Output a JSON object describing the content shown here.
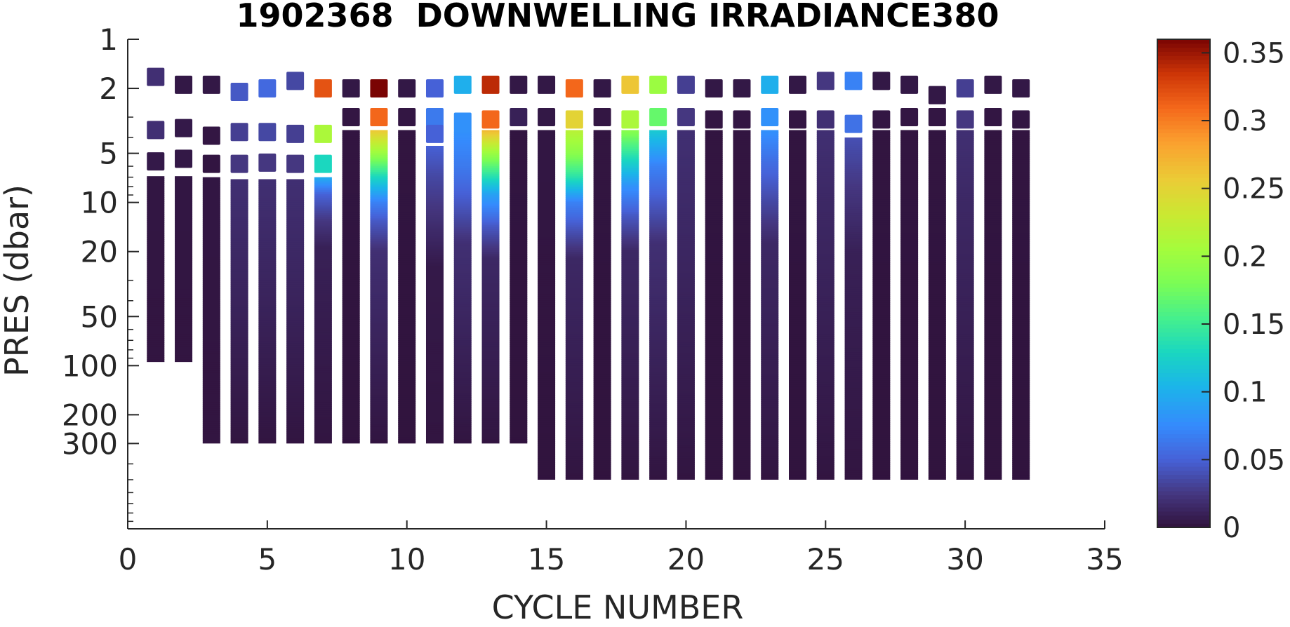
{
  "chart_data": {
    "type": "heatmap",
    "title": "1902368  DOWNWELLING IRRADIANCE380",
    "xlabel": "CYCLE NUMBER",
    "ylabel": "PRES (dbar)",
    "xlim": [
      0,
      35
    ],
    "ylim": [
      1,
      1000
    ],
    "yscale": "log",
    "y_reversed": true,
    "x_ticks": [
      0,
      5,
      10,
      15,
      20,
      25,
      30,
      35
    ],
    "y_ticks": [
      1,
      2,
      5,
      10,
      20,
      50,
      100,
      200,
      300
    ],
    "colorbar": {
      "colormap": "turbo",
      "limits": [
        0,
        0.36
      ],
      "ticks": [
        0,
        0.05,
        0.1,
        0.15,
        0.2,
        0.25,
        0.3,
        0.35
      ]
    },
    "cycles": [
      {
        "cycle": 1,
        "samples": [
          [
            1.7,
            0.02
          ],
          [
            3.6,
            0.02
          ],
          [
            5.6,
            0.005
          ]
        ],
        "profile": [
          [
            6.9,
            0.003
          ],
          [
            95,
            0.002
          ]
        ]
      },
      {
        "cycle": 2,
        "samples": [
          [
            1.9,
            0.004
          ],
          [
            3.5,
            0.005
          ],
          [
            5.4,
            0.004
          ]
        ],
        "profile": [
          [
            6.9,
            0.003
          ],
          [
            95,
            0.002
          ]
        ]
      },
      {
        "cycle": 3,
        "samples": [
          [
            1.9,
            0.004
          ],
          [
            3.9,
            0.003
          ],
          [
            5.8,
            0.002
          ]
        ],
        "profile": [
          [
            7.0,
            0.003
          ],
          [
            300,
            0.002
          ]
        ]
      },
      {
        "cycle": 4,
        "samples": [
          [
            2.1,
            0.045
          ],
          [
            3.7,
            0.03
          ],
          [
            5.8,
            0.025
          ]
        ],
        "profile": [
          [
            7.2,
            0.02
          ],
          [
            300,
            0.002
          ]
        ]
      },
      {
        "cycle": 5,
        "samples": [
          [
            2.0,
            0.055
          ],
          [
            3.7,
            0.035
          ],
          [
            5.7,
            0.025
          ]
        ],
        "profile": [
          [
            7.2,
            0.02
          ],
          [
            300,
            0.002
          ]
        ]
      },
      {
        "cycle": 6,
        "samples": [
          [
            1.8,
            0.035
          ],
          [
            3.8,
            0.03
          ],
          [
            5.8,
            0.025
          ]
        ],
        "profile": [
          [
            7.2,
            0.02
          ],
          [
            300,
            0.002
          ]
        ]
      },
      {
        "cycle": 7,
        "samples": [
          [
            2.0,
            0.32
          ],
          [
            3.8,
            0.21
          ],
          [
            5.8,
            0.13
          ]
        ],
        "profile": [
          [
            7.0,
            0.1
          ],
          [
            9.0,
            0.05
          ],
          [
            13,
            0.025
          ],
          [
            19,
            0.01
          ],
          [
            300,
            0.002
          ]
        ]
      },
      {
        "cycle": 8,
        "samples": [
          [
            2.0,
            0.004
          ],
          [
            3.0,
            0.003
          ]
        ],
        "profile": [
          [
            3.6,
            0.002
          ],
          [
            300,
            0.001
          ]
        ]
      },
      {
        "cycle": 9,
        "samples": [
          [
            2.0,
            0.36
          ],
          [
            3.0,
            0.31
          ]
        ],
        "profile": [
          [
            3.6,
            0.26
          ],
          [
            5.0,
            0.2
          ],
          [
            7.0,
            0.13
          ],
          [
            10,
            0.07
          ],
          [
            13,
            0.045
          ],
          [
            20,
            0.02
          ],
          [
            300,
            0.002
          ]
        ]
      },
      {
        "cycle": 10,
        "samples": [
          [
            2.0,
            0.004
          ],
          [
            3.0,
            0.003
          ]
        ],
        "profile": [
          [
            3.6,
            0.002
          ],
          [
            300,
            0.001
          ]
        ]
      },
      {
        "cycle": 11,
        "samples": [
          [
            2.0,
            0.05
          ],
          [
            3.0,
            0.065
          ],
          [
            3.8,
            0.05
          ]
        ],
        "profile": [
          [
            4.5,
            0.05
          ],
          [
            7.0,
            0.035
          ],
          [
            13,
            0.02
          ],
          [
            25,
            0.005
          ],
          [
            300,
            0.002
          ]
        ]
      },
      {
        "cycle": 12,
        "samples": [
          [
            1.9,
            0.1
          ],
          [
            3.2,
            0.08
          ]
        ],
        "profile": [
          [
            3.6,
            0.08
          ],
          [
            6.0,
            0.065
          ],
          [
            10,
            0.045
          ],
          [
            18,
            0.02
          ],
          [
            300,
            0.002
          ]
        ]
      },
      {
        "cycle": 13,
        "samples": [
          [
            1.9,
            0.34
          ],
          [
            3.1,
            0.31
          ]
        ],
        "profile": [
          [
            3.6,
            0.27
          ],
          [
            5.0,
            0.2
          ],
          [
            6.5,
            0.15
          ],
          [
            9.0,
            0.09
          ],
          [
            14,
            0.045
          ],
          [
            22,
            0.015
          ],
          [
            300,
            0.002
          ]
        ]
      },
      {
        "cycle": 14,
        "samples": [
          [
            1.9,
            0.004
          ],
          [
            3.0,
            0.01
          ]
        ],
        "profile": [
          [
            3.6,
            0.002
          ],
          [
            300,
            0.001
          ]
        ]
      },
      {
        "cycle": 15,
        "samples": [
          [
            1.9,
            0.004
          ],
          [
            3.0,
            0.004
          ]
        ],
        "profile": [
          [
            3.6,
            0.003
          ],
          [
            500,
            0.001
          ]
        ]
      },
      {
        "cycle": 16,
        "samples": [
          [
            2.0,
            0.31
          ],
          [
            3.1,
            0.25
          ]
        ],
        "profile": [
          [
            3.6,
            0.22
          ],
          [
            5.0,
            0.19
          ],
          [
            7.0,
            0.14
          ],
          [
            10,
            0.07
          ],
          [
            15,
            0.04
          ],
          [
            22,
            0.015
          ],
          [
            500,
            0.002
          ]
        ]
      },
      {
        "cycle": 17,
        "samples": [
          [
            2.0,
            0.004
          ],
          [
            3.0,
            0.003
          ]
        ],
        "profile": [
          [
            3.6,
            0.002
          ],
          [
            500,
            0.001
          ]
        ]
      },
      {
        "cycle": 18,
        "samples": [
          [
            1.9,
            0.26
          ],
          [
            3.1,
            0.21
          ]
        ],
        "profile": [
          [
            3.6,
            0.19
          ],
          [
            5.5,
            0.13
          ],
          [
            8.0,
            0.08
          ],
          [
            12,
            0.045
          ],
          [
            20,
            0.015
          ],
          [
            500,
            0.002
          ]
        ]
      },
      {
        "cycle": 19,
        "samples": [
          [
            1.9,
            0.2
          ],
          [
            3.0,
            0.17
          ]
        ],
        "profile": [
          [
            3.6,
            0.12
          ],
          [
            6.0,
            0.07
          ],
          [
            10,
            0.045
          ],
          [
            18,
            0.02
          ],
          [
            500,
            0.002
          ]
        ]
      },
      {
        "cycle": 20,
        "samples": [
          [
            1.9,
            0.03
          ],
          [
            3.0,
            0.025
          ]
        ],
        "profile": [
          [
            3.6,
            0.02
          ],
          [
            500,
            0.002
          ]
        ]
      },
      {
        "cycle": 21,
        "samples": [
          [
            2.0,
            0.004
          ],
          [
            3.1,
            0.003
          ]
        ],
        "profile": [
          [
            3.6,
            0.002
          ],
          [
            500,
            0.001
          ]
        ]
      },
      {
        "cycle": 22,
        "samples": [
          [
            2.0,
            0.004
          ],
          [
            3.1,
            0.003
          ]
        ],
        "profile": [
          [
            3.6,
            0.002
          ],
          [
            500,
            0.001
          ]
        ]
      },
      {
        "cycle": 23,
        "samples": [
          [
            1.9,
            0.1
          ],
          [
            3.0,
            0.08
          ]
        ],
        "profile": [
          [
            3.6,
            0.08
          ],
          [
            6.0,
            0.055
          ],
          [
            10,
            0.035
          ],
          [
            18,
            0.015
          ],
          [
            500,
            0.002
          ]
        ]
      },
      {
        "cycle": 24,
        "samples": [
          [
            1.9,
            0.004
          ],
          [
            3.1,
            0.003
          ]
        ],
        "profile": [
          [
            3.6,
            0.002
          ],
          [
            500,
            0.001
          ]
        ]
      },
      {
        "cycle": 25,
        "samples": [
          [
            1.8,
            0.025
          ],
          [
            3.1,
            0.02
          ]
        ],
        "profile": [
          [
            3.6,
            0.02
          ],
          [
            10,
            0.015
          ],
          [
            500,
            0.002
          ]
        ]
      },
      {
        "cycle": 26,
        "samples": [
          [
            1.8,
            0.07
          ],
          [
            3.3,
            0.06
          ]
        ],
        "profile": [
          [
            4.0,
            0.04
          ],
          [
            8.0,
            0.025
          ],
          [
            20,
            0.01
          ],
          [
            500,
            0.002
          ]
        ]
      },
      {
        "cycle": 27,
        "samples": [
          [
            1.8,
            0.004
          ],
          [
            3.1,
            0.003
          ]
        ],
        "profile": [
          [
            3.6,
            0.002
          ],
          [
            500,
            0.001
          ]
        ]
      },
      {
        "cycle": 28,
        "samples": [
          [
            1.9,
            0.004
          ],
          [
            3.0,
            0.003
          ]
        ],
        "profile": [
          [
            3.6,
            0.002
          ],
          [
            500,
            0.001
          ]
        ]
      },
      {
        "cycle": 29,
        "samples": [
          [
            2.2,
            0.004
          ],
          [
            3.0,
            0.003
          ]
        ],
        "profile": [
          [
            3.6,
            0.002
          ],
          [
            500,
            0.001
          ]
        ]
      },
      {
        "cycle": 30,
        "samples": [
          [
            2.0,
            0.03
          ],
          [
            3.1,
            0.025
          ]
        ],
        "profile": [
          [
            3.6,
            0.02
          ],
          [
            10,
            0.015
          ],
          [
            500,
            0.002
          ]
        ]
      },
      {
        "cycle": 31,
        "samples": [
          [
            1.9,
            0.004
          ],
          [
            3.0,
            0.003
          ]
        ],
        "profile": [
          [
            3.6,
            0.002
          ],
          [
            500,
            0.001
          ]
        ]
      },
      {
        "cycle": 32,
        "samples": [
          [
            2.0,
            0.004
          ],
          [
            3.1,
            0.003
          ]
        ],
        "profile": [
          [
            3.6,
            0.002
          ],
          [
            500,
            0.001
          ]
        ]
      }
    ]
  }
}
